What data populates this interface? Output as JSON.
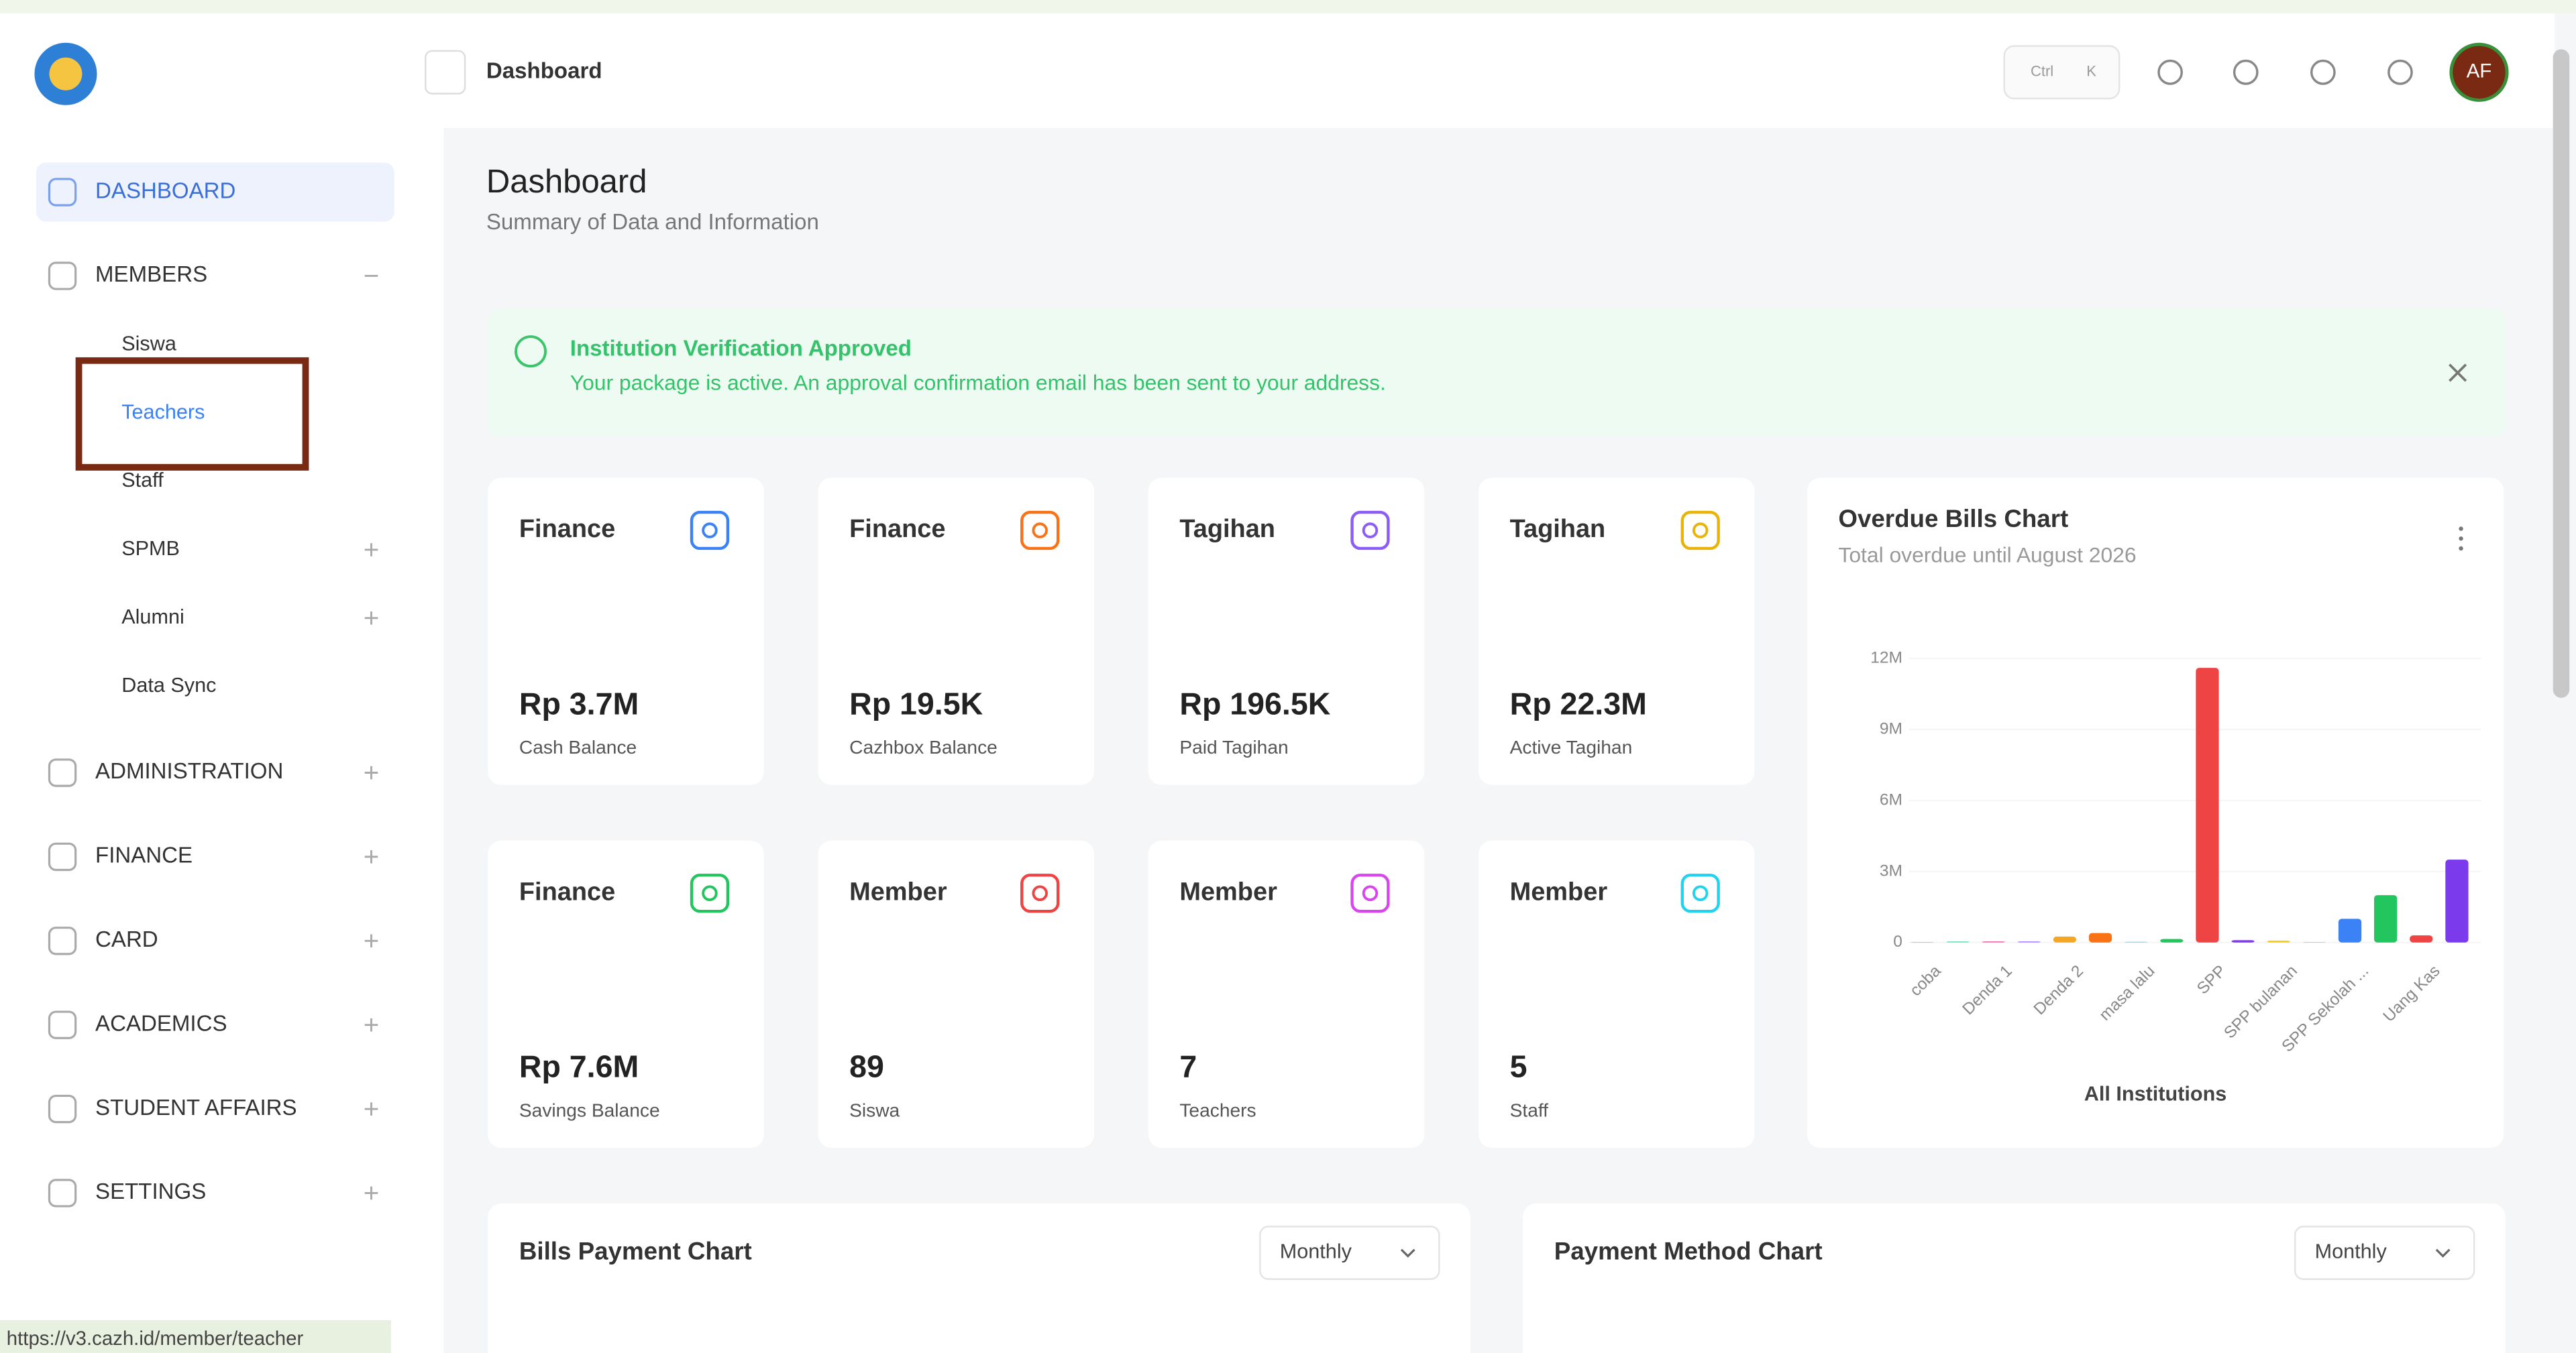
{
  "sidebar": {
    "nav": [
      {
        "label": "DASHBOARD",
        "active": true
      },
      {
        "label": "MEMBERS",
        "expanded": true,
        "children": [
          {
            "label": "Siswa"
          },
          {
            "label": "Teachers",
            "active": true
          },
          {
            "label": "Staff"
          },
          {
            "label": "SPMB",
            "expanded": false
          },
          {
            "label": "Alumni",
            "expanded": false
          },
          {
            "label": "Data Sync"
          }
        ]
      },
      {
        "label": "ADMINISTRATION",
        "expanded": false
      },
      {
        "label": "FINANCE",
        "expanded": false
      },
      {
        "label": "CARD",
        "expanded": false
      },
      {
        "label": "ACADEMICS",
        "expanded": false
      },
      {
        "label": "STUDENT AFFAIRS",
        "expanded": false
      },
      {
        "label": "SETTINGS",
        "expanded": false
      }
    ]
  },
  "header": {
    "breadcrumb": "Dashboard",
    "shortcut": [
      "Ctrl",
      "K"
    ],
    "avatar": "AF"
  },
  "page": {
    "title": "Dashboard",
    "subtitle": "Summary of Data and Information"
  },
  "alert": {
    "title": "Institution Verification Approved",
    "message": "Your package is active. An approval confirmation email has been sent to your address."
  },
  "cards": [
    {
      "category": "Finance",
      "value": "Rp 3.7M",
      "label": "Cash Balance",
      "color": "#3b82f6"
    },
    {
      "category": "Finance",
      "value": "Rp 19.5K",
      "label": "Cazhbox Balance",
      "color": "#f97316"
    },
    {
      "category": "Tagihan",
      "value": "Rp 196.5K",
      "label": "Paid Tagihan",
      "color": "#8b5cf6"
    },
    {
      "category": "Tagihan",
      "value": "Rp 22.3M",
      "label": "Active Tagihan",
      "color": "#eab308"
    },
    {
      "category": "Finance",
      "value": "Rp 7.6M",
      "label": "Savings Balance",
      "color": "#22c55e"
    },
    {
      "category": "Member",
      "value": "89",
      "label": "Siswa",
      "color": "#ef4444"
    },
    {
      "category": "Member",
      "value": "7",
      "label": "Teachers",
      "color": "#d946ef"
    },
    {
      "category": "Member",
      "value": "5",
      "label": "Staff",
      "color": "#22d3ee"
    }
  ],
  "chart_data": {
    "type": "bar",
    "title": "Overdue Bills Chart",
    "subtitle": "Total overdue until August 2026",
    "xlabel": "All Institutions",
    "categories": [
      "coba",
      null,
      "Denda 1",
      null,
      "Denda 2",
      null,
      "masa lalu",
      null,
      "SPP",
      null,
      "SPP bulanan",
      null,
      "SPP Sekolah ...",
      null,
      "Uang Kas",
      null
    ],
    "values": [
      20000,
      50000,
      50000,
      50000,
      250000,
      400000,
      30000,
      150000,
      11600000,
      100000,
      80000,
      20000,
      1000000,
      2000000,
      300000,
      3500000
    ],
    "colors": [
      "#9db4ff",
      "#7de0c0",
      "#f472b6",
      "#b28cff",
      "#f5a623",
      "#f97316",
      "#7dd3fc",
      "#22c55e",
      "#ef4444",
      "#7c3aed",
      "#facc15",
      "#a3e635",
      "#3b82f6",
      "#22c55e",
      "#ef4444",
      "#7c3aed"
    ],
    "ylim": [
      0,
      12000000
    ],
    "yticks": [
      {
        "value": 0,
        "label": "0"
      },
      {
        "value": 3000000,
        "label": "3M"
      },
      {
        "value": 6000000,
        "label": "6M"
      },
      {
        "value": 9000000,
        "label": "9M"
      },
      {
        "value": 12000000,
        "label": "12M"
      }
    ]
  },
  "panels": [
    {
      "title": "Bills Payment Chart",
      "period": "Monthly"
    },
    {
      "title": "Payment Method Chart",
      "period": "Monthly"
    }
  ],
  "status_url": "https://v3.cazh.id/member/teacher"
}
